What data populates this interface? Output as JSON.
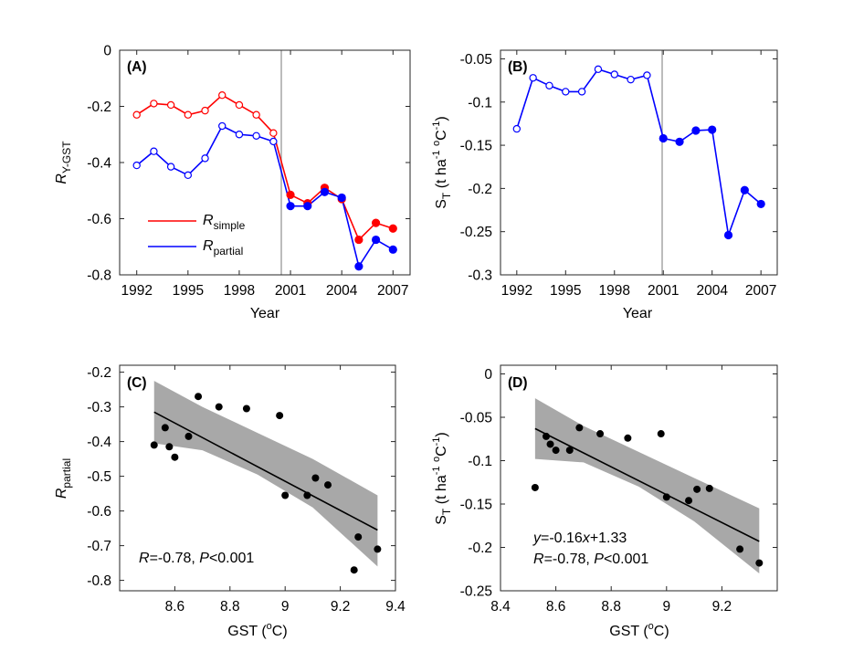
{
  "colors": {
    "simple": "#ff0000",
    "partial": "#0000ff",
    "st": "#0000ff",
    "band": "#a8a8a8",
    "vline": "#a6a6a6",
    "axis": "#262626"
  },
  "chart_data": [
    {
      "id": "A",
      "panel_label": "(A)",
      "type": "line",
      "xlabel": "Year",
      "ylabel_main": "R",
      "ylabel_sub": "Y-GST",
      "xlim": [
        1991,
        2008
      ],
      "ylim": [
        -0.8,
        0
      ],
      "xticks": [
        1992,
        1995,
        1998,
        2001,
        2004,
        2007
      ],
      "yticks": [
        -0.8,
        -0.6,
        -0.4,
        -0.2,
        0
      ],
      "ytick_labels": [
        "-0.8",
        "-0.6",
        "-0.4",
        "-0.2",
        "0"
      ],
      "vline_x": 2001,
      "filled_from_x": 2001,
      "x": [
        1992,
        1993,
        1994,
        1995,
        1996,
        1997,
        1998,
        1999,
        2000,
        2001,
        2002,
        2003,
        2004,
        2005,
        2006,
        2007
      ],
      "series": [
        {
          "key": "simple",
          "name_main": "R",
          "name_sub": "simple",
          "values": [
            -0.23,
            -0.19,
            -0.195,
            -0.23,
            -0.215,
            -0.16,
            -0.195,
            -0.23,
            -0.295,
            -0.515,
            -0.545,
            -0.49,
            -0.53,
            -0.675,
            -0.615,
            -0.635
          ]
        },
        {
          "key": "partial",
          "name_main": "R",
          "name_sub": "partial",
          "values": [
            -0.41,
            -0.36,
            -0.415,
            -0.445,
            -0.385,
            -0.27,
            -0.3,
            -0.305,
            -0.325,
            -0.555,
            -0.555,
            -0.505,
            -0.525,
            -0.77,
            -0.675,
            -0.71
          ]
        }
      ]
    },
    {
      "id": "B",
      "panel_label": "(B)",
      "type": "line",
      "xlabel": "Year",
      "ylabel_main": "S",
      "ylabel_sub": "T",
      "ylabel_unit": " (t ha",
      "ylabel_exp1": "-1",
      "ylabel_mid": " ",
      "ylabel_o": "o",
      "ylabel_c": "C",
      "ylabel_exp2": "-1",
      "ylabel_close": ")",
      "xlim": [
        1991,
        2008
      ],
      "ylim": [
        -0.3,
        -0.04
      ],
      "xticks": [
        1992,
        1995,
        1998,
        2001,
        2004,
        2007
      ],
      "yticks": [
        -0.3,
        -0.25,
        -0.2,
        -0.15,
        -0.1,
        -0.05
      ],
      "ytick_labels": [
        "-0.3",
        "-0.25",
        "-0.2",
        "-0.15",
        "-0.1",
        "-0.05"
      ],
      "vline_x": 2001,
      "filled_from_x": 2001,
      "x": [
        1992,
        1993,
        1994,
        1995,
        1996,
        1997,
        1998,
        1999,
        2000,
        2001,
        2002,
        2003,
        2004,
        2005,
        2006,
        2007
      ],
      "series": [
        {
          "key": "st",
          "name": "S_T",
          "values": [
            -0.131,
            -0.072,
            -0.081,
            -0.088,
            -0.088,
            -0.062,
            -0.068,
            -0.074,
            -0.069,
            -0.142,
            -0.146,
            -0.133,
            -0.132,
            -0.254,
            -0.202,
            -0.218
          ]
        }
      ]
    },
    {
      "id": "C",
      "panel_label": "(C)",
      "type": "scatter",
      "xlabel_main": "GST (",
      "xlabel_o": "o",
      "xlabel_c": "C)",
      "ylabel_main": "R",
      "ylabel_sub": "partial",
      "xlim": [
        8.4,
        9.4
      ],
      "ylim": [
        -0.83,
        -0.18
      ],
      "xticks": [
        8.6,
        8.8,
        9,
        9.2,
        9.4
      ],
      "xtick_labels": [
        "8.6",
        "8.8",
        "9",
        "9.2",
        "9.4"
      ],
      "yticks": [
        -0.8,
        -0.7,
        -0.6,
        -0.5,
        -0.4,
        -0.3,
        -0.2
      ],
      "ytick_labels": [
        "-0.8",
        "-0.7",
        "-0.6",
        "-0.5",
        "-0.4",
        "-0.3",
        "-0.2"
      ],
      "points": [
        [
          8.525,
          -0.41
        ],
        [
          8.565,
          -0.36
        ],
        [
          8.58,
          -0.415
        ],
        [
          8.6,
          -0.445
        ],
        [
          8.65,
          -0.385
        ],
        [
          8.685,
          -0.27
        ],
        [
          8.76,
          -0.3
        ],
        [
          8.86,
          -0.305
        ],
        [
          8.98,
          -0.325
        ],
        [
          9.0,
          -0.555
        ],
        [
          9.08,
          -0.555
        ],
        [
          9.11,
          -0.505
        ],
        [
          9.155,
          -0.525
        ],
        [
          9.25,
          -0.77
        ],
        [
          9.265,
          -0.675
        ],
        [
          9.335,
          -0.71
        ]
      ],
      "fit": {
        "x": [
          8.525,
          9.335
        ],
        "y": [
          -0.315,
          -0.655
        ]
      },
      "band": {
        "x": [
          8.525,
          8.7,
          8.9,
          9.1,
          9.335
        ],
        "upper": [
          -0.225,
          -0.3,
          -0.375,
          -0.45,
          -0.555
        ],
        "lower": [
          -0.405,
          -0.425,
          -0.495,
          -0.59,
          -0.76
        ]
      },
      "annotation": {
        "R_label": "R",
        "R_value": "=-0.78, ",
        "P_label": "P",
        "P_value": "<0.001"
      }
    },
    {
      "id": "D",
      "panel_label": "(D)",
      "type": "scatter",
      "xlabel_main": "GST (",
      "xlabel_o": "o",
      "xlabel_c": "C)",
      "ylabel_main": "S",
      "ylabel_sub": "T",
      "ylabel_unit": " (t ha",
      "ylabel_exp1": "-1",
      "ylabel_mid": " ",
      "ylabel_o": "o",
      "ylabel_c": "C",
      "ylabel_exp2": "-1",
      "ylabel_close": ")",
      "xlim": [
        8.4,
        9.4
      ],
      "ylim": [
        -0.25,
        0.01
      ],
      "xticks": [
        8.4,
        8.6,
        8.8,
        9,
        9.2
      ],
      "xtick_labels": [
        "8.4",
        "8.6",
        "8.8",
        "9",
        "9.2"
      ],
      "yticks": [
        -0.25,
        -0.2,
        -0.15,
        -0.1,
        -0.05,
        0
      ],
      "ytick_labels": [
        "-0.25",
        "-0.2",
        "-0.15",
        "-0.1",
        "-0.05",
        "0"
      ],
      "points": [
        [
          8.525,
          -0.131
        ],
        [
          8.565,
          -0.072
        ],
        [
          8.58,
          -0.081
        ],
        [
          8.6,
          -0.088
        ],
        [
          8.65,
          -0.088
        ],
        [
          8.685,
          -0.062
        ],
        [
          8.76,
          -0.069
        ],
        [
          8.86,
          -0.074
        ],
        [
          8.98,
          -0.069
        ],
        [
          9.0,
          -0.142
        ],
        [
          9.08,
          -0.146
        ],
        [
          9.11,
          -0.133
        ],
        [
          9.155,
          -0.132
        ],
        [
          9.265,
          -0.202
        ],
        [
          9.335,
          -0.218
        ]
      ],
      "fit": {
        "x": [
          8.525,
          9.335
        ],
        "y": [
          -0.063,
          -0.193
        ]
      },
      "band": {
        "x": [
          8.525,
          8.7,
          8.9,
          9.1,
          9.335
        ],
        "upper": [
          -0.028,
          -0.06,
          -0.09,
          -0.12,
          -0.155
        ],
        "lower": [
          -0.098,
          -0.102,
          -0.13,
          -0.17,
          -0.23
        ]
      },
      "annotation": {
        "eq_y": "y",
        "eq_mid": "=-0.16",
        "eq_x": "x",
        "eq_end": "+1.33",
        "R_label": "R",
        "R_value": "=-0.78, ",
        "P_label": "P",
        "P_value": "<0.001"
      }
    }
  ]
}
